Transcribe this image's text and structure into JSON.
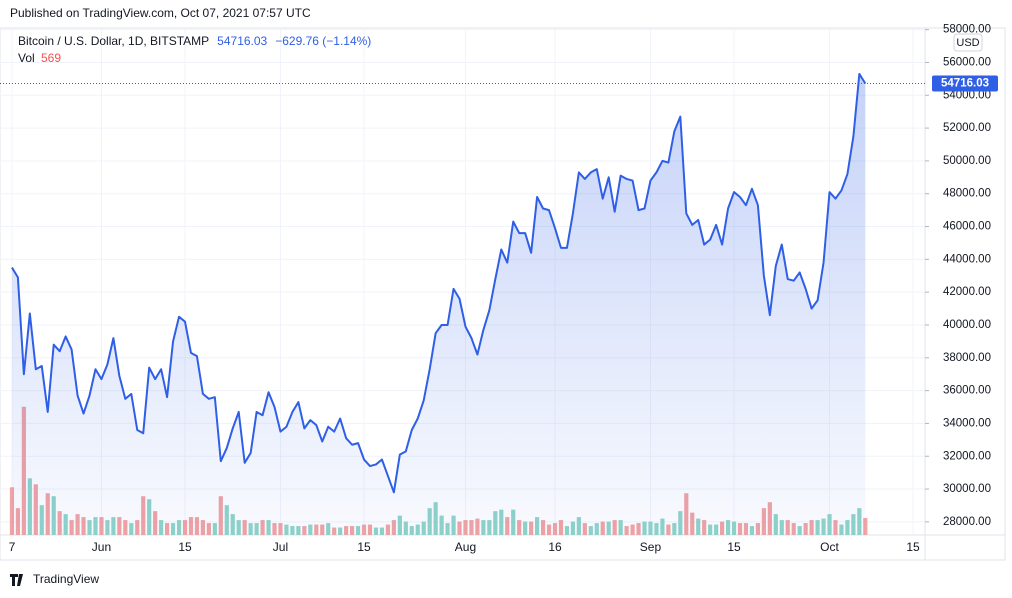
{
  "chart_data": {
    "type": "line",
    "published": "Published on TradingView.com, Oct 07, 2021 07:57 UTC",
    "title": "Bitcoin / U.S. Dollar, 1D, BITSTAMP",
    "change": "−629.76 (−1.14%)",
    "currency": "USD",
    "brand": "TradingView",
    "grid": true,
    "x": [
      "2021-05-17",
      "2021-05-18",
      "2021-05-19",
      "2021-05-20",
      "2021-05-21",
      "2021-05-22",
      "2021-05-23",
      "2021-05-24",
      "2021-05-25",
      "2021-05-26",
      "2021-05-27",
      "2021-05-28",
      "2021-05-29",
      "2021-05-30",
      "2021-05-31",
      "2021-06-01",
      "2021-06-02",
      "2021-06-03",
      "2021-06-04",
      "2021-06-05",
      "2021-06-06",
      "2021-06-07",
      "2021-06-08",
      "2021-06-09",
      "2021-06-10",
      "2021-06-11",
      "2021-06-12",
      "2021-06-13",
      "2021-06-14",
      "2021-06-15",
      "2021-06-16",
      "2021-06-17",
      "2021-06-18",
      "2021-06-19",
      "2021-06-20",
      "2021-06-21",
      "2021-06-22",
      "2021-06-23",
      "2021-06-24",
      "2021-06-25",
      "2021-06-26",
      "2021-06-27",
      "2021-06-28",
      "2021-06-29",
      "2021-06-30",
      "2021-07-01",
      "2021-07-02",
      "2021-07-03",
      "2021-07-04",
      "2021-07-05",
      "2021-07-06",
      "2021-07-07",
      "2021-07-08",
      "2021-07-09",
      "2021-07-10",
      "2021-07-11",
      "2021-07-12",
      "2021-07-13",
      "2021-07-14",
      "2021-07-15",
      "2021-07-16",
      "2021-07-17",
      "2021-07-18",
      "2021-07-19",
      "2021-07-20",
      "2021-07-21",
      "2021-07-22",
      "2021-07-23",
      "2021-07-24",
      "2021-07-25",
      "2021-07-26",
      "2021-07-27",
      "2021-07-28",
      "2021-07-29",
      "2021-07-30",
      "2021-07-31",
      "2021-08-01",
      "2021-08-02",
      "2021-08-03",
      "2021-08-04",
      "2021-08-05",
      "2021-08-06",
      "2021-08-07",
      "2021-08-08",
      "2021-08-09",
      "2021-08-10",
      "2021-08-11",
      "2021-08-12",
      "2021-08-13",
      "2021-08-14",
      "2021-08-15",
      "2021-08-16",
      "2021-08-17",
      "2021-08-18",
      "2021-08-19",
      "2021-08-20",
      "2021-08-21",
      "2021-08-22",
      "2021-08-23",
      "2021-08-24",
      "2021-08-25",
      "2021-08-26",
      "2021-08-27",
      "2021-08-28",
      "2021-08-29",
      "2021-08-30",
      "2021-08-31",
      "2021-09-01",
      "2021-09-02",
      "2021-09-03",
      "2021-09-04",
      "2021-09-05",
      "2021-09-06",
      "2021-09-07",
      "2021-09-08",
      "2021-09-09",
      "2021-09-10",
      "2021-09-11",
      "2021-09-12",
      "2021-09-13",
      "2021-09-14",
      "2021-09-15",
      "2021-09-16",
      "2021-09-17",
      "2021-09-18",
      "2021-09-19",
      "2021-09-20",
      "2021-09-21",
      "2021-09-22",
      "2021-09-23",
      "2021-09-24",
      "2021-09-25",
      "2021-09-26",
      "2021-09-27",
      "2021-09-28",
      "2021-09-29",
      "2021-09-30",
      "2021-10-01",
      "2021-10-02",
      "2021-10-03",
      "2021-10-04",
      "2021-10-05",
      "2021-10-06",
      "2021-10-07"
    ],
    "series": [
      {
        "type": "area",
        "color": "#2f5fe6",
        "values": [
          43500,
          42900,
          37000,
          40700,
          37300,
          37500,
          34700,
          38800,
          38400,
          39300,
          38500,
          35700,
          34600,
          35700,
          37300,
          36700,
          37600,
          39200,
          36900,
          35500,
          35800,
          33600,
          33400,
          37400,
          36700,
          37300,
          35600,
          39000,
          40500,
          40200,
          38300,
          38100,
          35800,
          35500,
          35600,
          31700,
          32500,
          33700,
          34700,
          31600,
          32200,
          34700,
          34500,
          35900,
          35000,
          33500,
          33800,
          34700,
          35300,
          33700,
          34200,
          33900,
          32900,
          33800,
          33500,
          34300,
          33100,
          32700,
          32800,
          31800,
          31400,
          31500,
          31800,
          30800,
          29800,
          32100,
          32300,
          33600,
          34300,
          35400,
          37300,
          39500,
          40000,
          40000,
          42200,
          41600,
          39900,
          39200,
          38200,
          39700,
          40900,
          42800,
          44600,
          43800,
          46300,
          45600,
          45600,
          44400,
          47800,
          47100,
          47000,
          45900,
          44700,
          44700,
          46800,
          49300,
          48900,
          49300,
          49500,
          47700,
          49000,
          46900,
          49100,
          48900,
          48800,
          47000,
          47100,
          48800,
          49300,
          50000,
          49900,
          51800,
          52700,
          46800,
          46100,
          46400,
          44900,
          45200,
          46100,
          44900,
          47100,
          48100,
          47800,
          47300,
          48300,
          47300,
          43000,
          40600,
          43600,
          44900,
          42800,
          42700,
          43200,
          42200,
          41000,
          41500,
          43800,
          48100,
          47700,
          48200,
          49200,
          51500,
          55300,
          54716.03
        ]
      },
      {
        "type": "bar",
        "name": "Vol",
        "axis": "y2",
        "up_color": "#8fd4c9",
        "down_color": "#f2a3a3",
        "values": [
          1600,
          900,
          4300,
          1900,
          1700,
          1000,
          1400,
          1300,
          800,
          700,
          500,
          700,
          600,
          500,
          600,
          600,
          500,
          600,
          600,
          500,
          400,
          500,
          1300,
          1200,
          800,
          500,
          400,
          400,
          500,
          500,
          600,
          600,
          500,
          400,
          400,
          1300,
          1000,
          700,
          500,
          500,
          400,
          400,
          500,
          500,
          400,
          400,
          350,
          300,
          300,
          300,
          350,
          350,
          350,
          400,
          250,
          250,
          300,
          300,
          300,
          350,
          350,
          250,
          250,
          350,
          500,
          650,
          450,
          300,
          350,
          450,
          900,
          1100,
          650,
          400,
          650,
          450,
          500,
          500,
          550,
          500,
          500,
          800,
          850,
          600,
          850,
          500,
          450,
          450,
          600,
          500,
          350,
          400,
          500,
          300,
          450,
          600,
          400,
          300,
          400,
          450,
          450,
          500,
          500,
          300,
          350,
          400,
          450,
          450,
          400,
          550,
          350,
          400,
          800,
          1400,
          750,
          550,
          500,
          350,
          350,
          450,
          500,
          450,
          400,
          400,
          300,
          400,
          900,
          1100,
          700,
          500,
          500,
          400,
          300,
          400,
          500,
          500,
          550,
          700,
          500,
          350,
          500,
          700,
          900,
          569
        ]
      }
    ],
    "xlim": [
      "2021-05-15",
      "2021-10-17"
    ],
    "xticks": [
      {
        "value": "2021-05-17",
        "label": "7"
      },
      {
        "value": "2021-06-01",
        "label": "Jun"
      },
      {
        "value": "2021-06-15",
        "label": "15"
      },
      {
        "value": "2021-07-01",
        "label": "Jul"
      },
      {
        "value": "2021-07-15",
        "label": "15"
      },
      {
        "value": "2021-08-01",
        "label": "Aug"
      },
      {
        "value": "2021-08-16",
        "label": "16"
      },
      {
        "value": "2021-09-01",
        "label": "Sep"
      },
      {
        "value": "2021-09-15",
        "label": "15"
      },
      {
        "value": "2021-10-01",
        "label": "Oct"
      },
      {
        "value": "2021-10-15",
        "label": "15"
      }
    ],
    "ylim": [
      27200,
      58100
    ],
    "yticks": [
      {
        "value": 28000,
        "label": "28000.00"
      },
      {
        "value": 30000,
        "label": "30000.00"
      },
      {
        "value": 32000,
        "label": "32000.00"
      },
      {
        "value": 34000,
        "label": "34000.00"
      },
      {
        "value": 36000,
        "label": "36000.00"
      },
      {
        "value": 38000,
        "label": "38000.00"
      },
      {
        "value": 40000,
        "label": "40000.00"
      },
      {
        "value": 42000,
        "label": "42000.00"
      },
      {
        "value": 44000,
        "label": "44000.00"
      },
      {
        "value": 46000,
        "label": "46000.00"
      },
      {
        "value": 48000,
        "label": "48000.00"
      },
      {
        "value": 50000,
        "label": "50000.00"
      },
      {
        "value": 52000,
        "label": "52000.00"
      },
      {
        "value": 54000,
        "label": "54000.00"
      },
      {
        "value": 56000,
        "label": "56000.00"
      },
      {
        "value": 58000,
        "label": "58000.00"
      }
    ],
    "y2lim": [
      0,
      17000
    ]
  }
}
